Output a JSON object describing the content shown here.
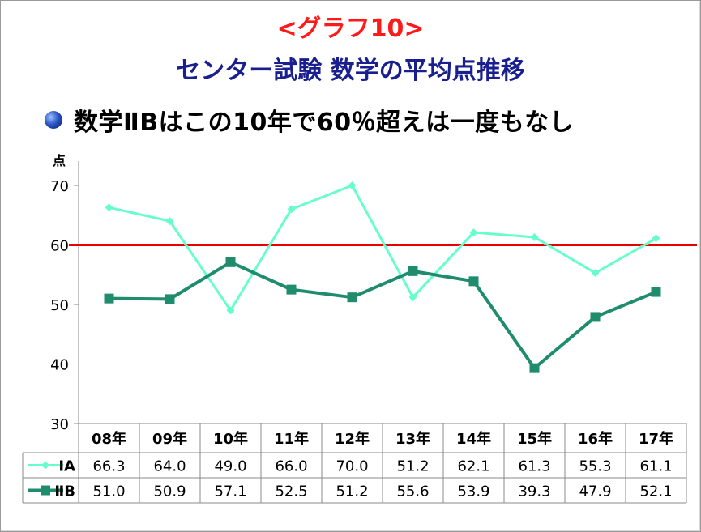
{
  "slide": {
    "title": "<グラフ10>",
    "subtitle": "センター試験 数学の平均点推移",
    "bullet": "数学ⅡBはこの10年で60％超えは一度もなし"
  },
  "colors": {
    "title": "#ff1a1a",
    "subtitle": "#1a1f8f",
    "series_ia": "#66ffcc",
    "series_iib": "#1f8c6e",
    "reference_line": "#e60000"
  },
  "chart_data": {
    "type": "line",
    "ylabel": "点",
    "ylim": [
      30,
      70
    ],
    "yticks": [
      30,
      40,
      50,
      60,
      70
    ],
    "grid": false,
    "reference_line": 60,
    "categories": [
      "08年",
      "09年",
      "10年",
      "11年",
      "12年",
      "13年",
      "14年",
      "15年",
      "16年",
      "17年"
    ],
    "series": [
      {
        "name": "ⅠA",
        "marker": "diamond",
        "values": [
          66.3,
          64.0,
          49.0,
          66.0,
          70.0,
          51.2,
          62.1,
          61.3,
          55.3,
          61.1
        ],
        "labels": [
          "66.3",
          "64.0",
          "49.0",
          "66.0",
          "70.0",
          "51.2",
          "62.1",
          "61.3",
          "55.3",
          "61.1"
        ]
      },
      {
        "name": "ⅡB",
        "marker": "square",
        "values": [
          51.0,
          50.9,
          57.1,
          52.5,
          51.2,
          55.6,
          53.9,
          39.3,
          47.9,
          52.1
        ],
        "labels": [
          "51.0",
          "50.9",
          "57.1",
          "52.5",
          "51.2",
          "55.6",
          "53.9",
          "39.3",
          "47.9",
          "52.1"
        ]
      }
    ],
    "data_table": true
  }
}
